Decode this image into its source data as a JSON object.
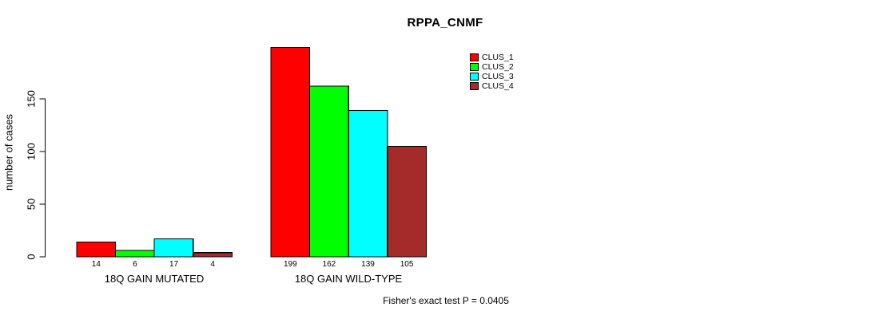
{
  "chart_data": {
    "type": "bar",
    "title": "RPPA_CNMF",
    "ylabel": "number of cases",
    "xlabel": "",
    "yticks": [
      0,
      50,
      100,
      150
    ],
    "ylim": [
      0,
      207
    ],
    "grid": false,
    "legend_position": "top-right",
    "bar_outline_color": "#000000",
    "categories": [
      "18Q GAIN MUTATED",
      "18Q GAIN WILD-TYPE"
    ],
    "series": [
      {
        "name": "CLUS_1",
        "color": "#ff0000",
        "values": [
          14,
          199
        ]
      },
      {
        "name": "CLUS_2",
        "color": "#00ff00",
        "values": [
          6,
          162
        ]
      },
      {
        "name": "CLUS_3",
        "color": "#00ffff",
        "values": [
          17,
          139
        ]
      },
      {
        "name": "CLUS_4",
        "color": "#a52a2a",
        "values": [
          4,
          105
        ]
      }
    ],
    "annotation": "Fisher's exact test P = 0.0405"
  }
}
